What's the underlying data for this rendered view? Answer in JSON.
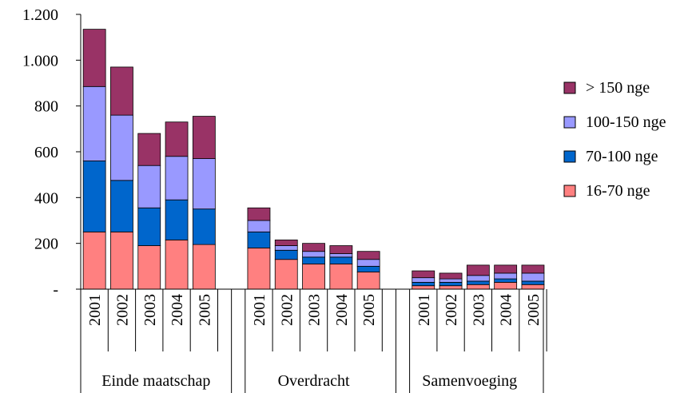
{
  "chart_data": {
    "type": "bar",
    "stacked": true,
    "groups": [
      "Einde maatschap",
      "Overdracht",
      "Samenvoeging"
    ],
    "categories": [
      "2001",
      "2002",
      "2003",
      "2004",
      "2005"
    ],
    "y_ticks": [
      "-",
      "200",
      "400",
      "600",
      "800",
      "1.000",
      "1.200"
    ],
    "ylim": [
      0,
      1200
    ],
    "grid": false,
    "legend_position": "right",
    "series": [
      {
        "name": "16-70 nge",
        "color": "#ff8080",
        "values": [
          [
            250,
            250,
            190,
            215,
            195
          ],
          [
            180,
            130,
            110,
            110,
            75
          ],
          [
            15,
            15,
            20,
            30,
            20
          ]
        ]
      },
      {
        "name": "70-100 nge",
        "color": "#0066cc",
        "values": [
          [
            310,
            225,
            165,
            175,
            155
          ],
          [
            70,
            40,
            30,
            30,
            25
          ],
          [
            15,
            15,
            15,
            15,
            15
          ]
        ]
      },
      {
        "name": "100-150 nge",
        "color": "#9999ff",
        "values": [
          [
            325,
            285,
            185,
            190,
            220
          ],
          [
            50,
            20,
            25,
            15,
            30
          ],
          [
            20,
            15,
            25,
            25,
            35
          ]
        ]
      },
      {
        "name": "> 150 nge",
        "color": "#993366",
        "values": [
          [
            250,
            210,
            140,
            150,
            185
          ],
          [
            55,
            25,
            35,
            35,
            35
          ],
          [
            30,
            25,
            45,
            35,
            35
          ]
        ]
      }
    ]
  }
}
